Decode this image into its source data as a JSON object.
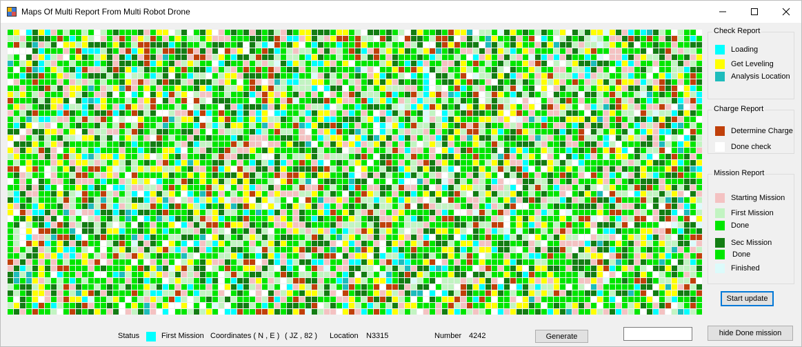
{
  "window": {
    "title": "Maps Of Multi Report From Multi Robot Drone"
  },
  "colors": {
    "loading": "#00ffff",
    "get_leveling": "#ffff00",
    "analysis_location": "#1ebcbc",
    "determine_charge": "#c0400a",
    "done_check": "#ffffff",
    "starting_mission": "#f4c2c2",
    "first_mission": "#c2f4c2",
    "done": "#00e600",
    "sec_mission": "#137d13",
    "finished": "#dcfbfb"
  },
  "check_report": {
    "title": "Check Report",
    "items": [
      {
        "label": "Loading",
        "color": "#00ffff"
      },
      {
        "label": "Get Leveling",
        "color": "#ffff00"
      },
      {
        "label": "Analysis Location",
        "color": "#1ebcbc"
      }
    ]
  },
  "charge_report": {
    "title": "Charge Report",
    "items": [
      {
        "label": "Determine Charge",
        "color": "#c0400a"
      },
      {
        "label": "Done check",
        "color": "#ffffff"
      }
    ]
  },
  "mission_report": {
    "title": "Mission Report",
    "items": [
      {
        "label": "Starting Mission",
        "color": "#f4c2c2"
      },
      {
        "label": "First Mission",
        "color": "#c2f4c2"
      },
      {
        "label": "Done",
        "color": "#00e600"
      },
      {
        "label": "Sec Mission",
        "color": "#137d13"
      },
      {
        "label": "Done",
        "color": "#00e600"
      },
      {
        "label": "Finished",
        "color": "#dcfbfb"
      }
    ]
  },
  "buttons": {
    "start_update": "Start update",
    "generate": "Generate",
    "hide_done_mission": "hide Done mission"
  },
  "status_bar": {
    "status_label": "Status",
    "status_value": "First Mission",
    "status_color": "#00ffff",
    "coordinates_label": "Coordinates ( N , E )",
    "coordinates_value": "( JZ , 82 )",
    "location_label": "Location",
    "location_value": "N3315",
    "number_label": "Number",
    "number_value": "4242",
    "input_value": ""
  }
}
